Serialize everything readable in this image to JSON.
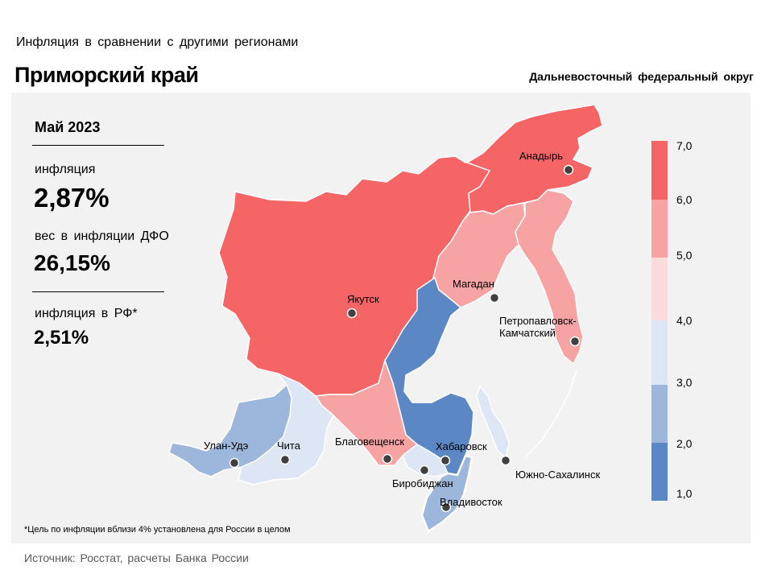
{
  "header": {
    "subtitle": "Инфляция в сравнении с другими регионами",
    "title": "Приморский край",
    "district": "Дальневосточный федеральный округ"
  },
  "stats": {
    "period": "Май 2023",
    "inflation_label": "инфляция",
    "inflation_value": "2,87%",
    "weight_label": "вес в инфляции ДФО",
    "weight_value": "26,15%",
    "rf_label": "инфляция в РФ*",
    "rf_value": "2,51%"
  },
  "footnote": "*Цель по инфляции вблизи 4% установлена для России в целом",
  "source": "Источник: Росстат, расчеты Банка России",
  "cities": {
    "anadyr": "Анадырь",
    "magadan": "Магадан",
    "yakutsk": "Якутск",
    "petropavlovsk_1": "Петропавловск-",
    "petropavlovsk_2": "Камчатский",
    "ulan_ude": "Улан-Удэ",
    "chita": "Чита",
    "blagoveshchensk": "Благовещенск",
    "khabarovsk": "Хабаровск",
    "yuzhno": "Южно-Сахалинск",
    "birobidzhan": "Биробиджан",
    "vladivostok": "Владивосток"
  },
  "legend": {
    "ticks": [
      "7,0",
      "6,0",
      "5,0",
      "4,0",
      "3,0",
      "2,0",
      "1,0"
    ],
    "colors": [
      "#f56565",
      "#f7a3a3",
      "#fbdcdc",
      "#dce6f4",
      "#9db6dc",
      "#5b87c5"
    ]
  },
  "colors": {
    "high": "#f56565",
    "mid_high": "#f7a3a3",
    "low_mid": "#dce6f4",
    "low": "#9db6dc",
    "lowest": "#5b87c5"
  }
}
